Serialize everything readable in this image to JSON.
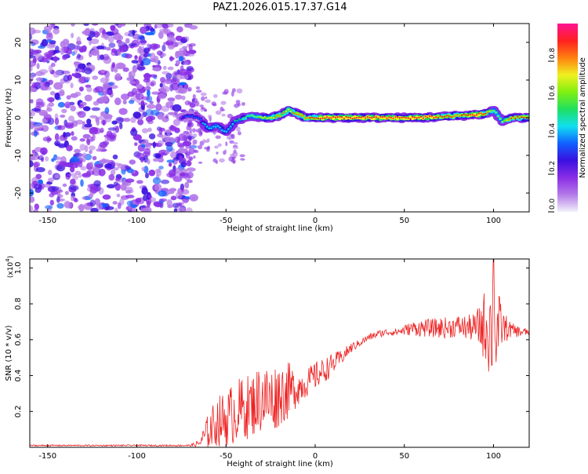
{
  "title": "PAZ1.2026.015.17.37.G14",
  "colors": {
    "snr_line": "#ee2222",
    "colormap": [
      "#f2f2fb",
      "#b47ae8",
      "#8a2ee6",
      "#3a10e0",
      "#1060ff",
      "#10e0f0",
      "#20e060",
      "#80f010",
      "#f0f020",
      "#ff8010",
      "#ff2020",
      "#ff1493"
    ]
  },
  "chart_data": [
    {
      "type": "heatmap",
      "title": "PAZ1.2026.015.17.37.G14",
      "xlabel": "Height of straight line (km)",
      "ylabel": "Frequency (Hz)",
      "xlim": [
        -160,
        120
      ],
      "ylim": [
        -25,
        25
      ],
      "xticks": [
        -150,
        -100,
        -50,
        0,
        50,
        100
      ],
      "yticks": [
        20,
        10,
        0,
        -10,
        -20
      ],
      "colorbar": {
        "label": "Normalized spectral amplitude",
        "range": [
          0,
          1
        ],
        "ticks": [
          "0.0",
          "0.2",
          "0.4",
          "0.6",
          "0.8"
        ]
      },
      "noise_region_x": [
        -160,
        -72
      ],
      "ridge": {
        "x": [
          -75,
          -70,
          -65,
          -60,
          -55,
          -50,
          -45,
          -40,
          -35,
          -30,
          -25,
          -20,
          -15,
          -10,
          -5,
          0,
          10,
          20,
          30,
          40,
          50,
          60,
          70,
          80,
          90,
          95,
          100,
          105,
          110,
          120
        ],
        "freq": [
          0,
          0.5,
          0,
          -3,
          -2,
          -4,
          -1,
          0,
          0.5,
          0,
          0,
          0.5,
          2,
          1,
          0,
          0,
          0,
          0,
          0,
          0,
          0,
          0,
          0.3,
          0.5,
          0.8,
          1,
          2,
          -1,
          0,
          0
        ],
        "amplitude": [
          0.3,
          0.35,
          0.4,
          0.45,
          0.45,
          0.45,
          0.5,
          0.55,
          0.6,
          0.7,
          0.75,
          0.8,
          0.75,
          0.8,
          0.85,
          0.9,
          0.95,
          0.95,
          0.95,
          0.95,
          0.95,
          0.95,
          0.9,
          0.85,
          0.95,
          0.9,
          0.6,
          0.6,
          0.9,
          0.9
        ]
      }
    },
    {
      "type": "line",
      "xlabel": "Height of straight line (km)",
      "ylabel": "SNR (10 * v/v)",
      "scale_label": "(x10",
      "scale_exp": "4",
      "scale_close": ")",
      "xlim": [
        -160,
        120
      ],
      "ylim": [
        0,
        1.05
      ],
      "xticks": [
        -150,
        -100,
        -50,
        0,
        50,
        100
      ],
      "yticks": [
        0.2,
        0.4,
        0.6,
        0.8,
        1.0
      ],
      "ytick_labels": [
        "0.2",
        "0.4",
        "0.6",
        "0.8",
        "1.0"
      ],
      "series": [
        {
          "name": "SNR",
          "x": [
            -160,
            -130,
            -100,
            -80,
            -70,
            -65,
            -60,
            -55,
            -50,
            -45,
            -40,
            -35,
            -30,
            -25,
            -20,
            -15,
            -10,
            -5,
            0,
            5,
            10,
            15,
            20,
            25,
            30,
            35,
            40,
            45,
            50,
            55,
            60,
            65,
            70,
            75,
            80,
            85,
            90,
            95,
            100,
            105,
            110,
            115,
            120
          ],
          "mean": [
            0.01,
            0.01,
            0.01,
            0.01,
            0.01,
            0.02,
            0.08,
            0.13,
            0.14,
            0.18,
            0.2,
            0.22,
            0.26,
            0.24,
            0.28,
            0.3,
            0.32,
            0.35,
            0.39,
            0.42,
            0.46,
            0.5,
            0.55,
            0.58,
            0.61,
            0.63,
            0.64,
            0.64,
            0.65,
            0.66,
            0.66,
            0.66,
            0.66,
            0.66,
            0.67,
            0.66,
            0.66,
            0.66,
            0.62,
            0.66,
            0.65,
            0.64,
            0.64
          ],
          "jitter": [
            0.004,
            0.004,
            0.004,
            0.004,
            0.005,
            0.02,
            0.1,
            0.14,
            0.16,
            0.18,
            0.18,
            0.18,
            0.2,
            0.2,
            0.18,
            0.16,
            0.1,
            0.08,
            0.08,
            0.07,
            0.06,
            0.04,
            0.03,
            0.02,
            0.02,
            0.02,
            0.02,
            0.02,
            0.03,
            0.04,
            0.05,
            0.05,
            0.06,
            0.06,
            0.06,
            0.07,
            0.08,
            0.2,
            0.35,
            0.1,
            0.04,
            0.03,
            0.02
          ],
          "peak": {
            "x": 100,
            "y": 1.05
          }
        }
      ]
    }
  ]
}
